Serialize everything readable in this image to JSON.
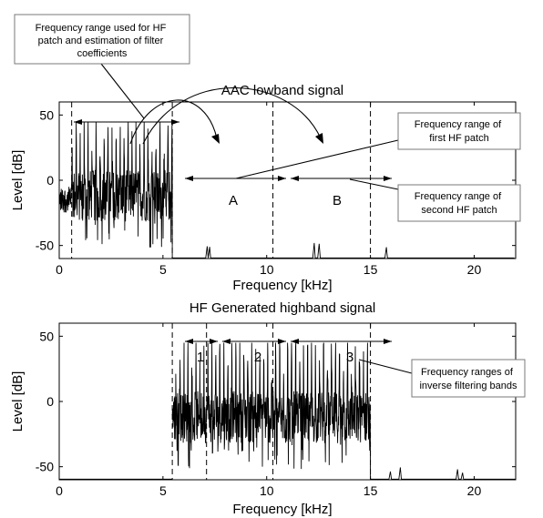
{
  "chart_data": [
    {
      "type": "line",
      "title": "AAC lowband signal",
      "xlabel": "Frequency [kHz]",
      "ylabel": "Level [dB]",
      "xlim": [
        0,
        22
      ],
      "ylim": [
        -60,
        60
      ],
      "xticks": [
        "0",
        "5",
        "10",
        "15",
        "20"
      ],
      "yticks": [
        "50",
        "0",
        "-50"
      ],
      "markers_khz": [
        0.6,
        5.45,
        10.3,
        15.0
      ],
      "region_labels": [
        {
          "label": "A",
          "x": 7.9
        },
        {
          "label": "B",
          "x": 12.7
        }
      ],
      "annotations": {
        "filter_range": "Frequency range used for HF patch and estimation of filter coefficients",
        "first_patch": "Frequency range of first HF patch",
        "second_patch": "Frequency range of second HF patch"
      }
    },
    {
      "type": "line",
      "title": "HF Generated highband signal",
      "xlabel": "Frequency [kHz]",
      "ylabel": "Level [dB]",
      "xlim": [
        0,
        22
      ],
      "ylim": [
        -60,
        60
      ],
      "xticks": [
        "0",
        "5",
        "10",
        "15",
        "20"
      ],
      "yticks": [
        "50",
        "0",
        "-50"
      ],
      "markers_khz": [
        5.45,
        7.1,
        10.3,
        15.0
      ],
      "region_labels": [
        {
          "label": "1",
          "x": 6.25
        },
        {
          "label": "2",
          "x": 8.7
        },
        {
          "label": "3",
          "x": 12.65
        }
      ],
      "annotations": {
        "inverse_filtering": "Frequency ranges of inverse filtering bands"
      }
    }
  ]
}
